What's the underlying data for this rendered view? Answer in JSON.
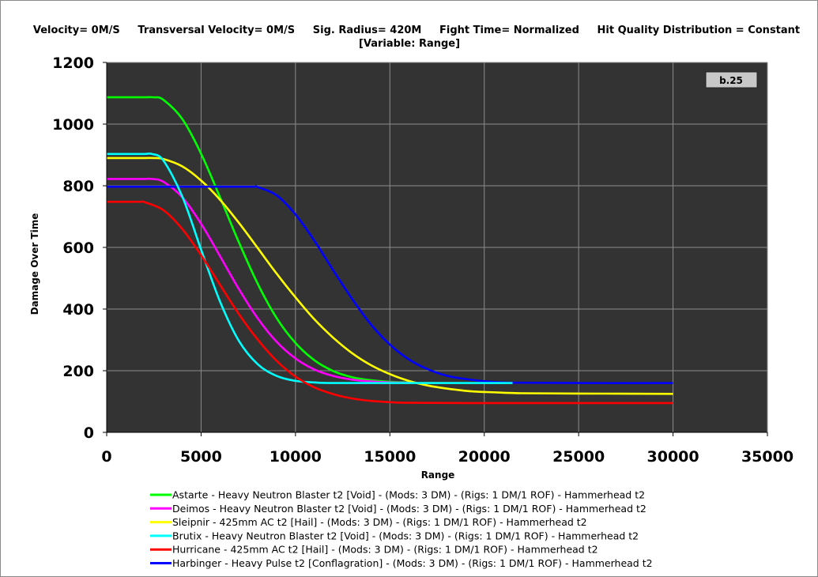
{
  "chart_data": {
    "type": "line",
    "title_line1": "Velocity= 0M/S     Transversal Velocity= 0M/S     Sig. Radius= 420M     Fight Time= Normalized     Hit Quality Distribution = Constant",
    "title_line2": "[Variable: Range]",
    "badge": "b.25",
    "xlabel": "Range",
    "ylabel": "Damage Over Time",
    "xlim": [
      0,
      35000
    ],
    "ylim": [
      0,
      1200
    ],
    "xticks": [
      0,
      5000,
      10000,
      15000,
      20000,
      25000,
      30000,
      35000
    ],
    "yticks": [
      0,
      200,
      400,
      600,
      800,
      1000,
      1200
    ],
    "grid": true,
    "legend_position": "bottom",
    "colors": {
      "background": "#333333",
      "grid": "#8c8c8c"
    },
    "series": [
      {
        "name": "Astarte - Heavy Neutron Blaster t2 [Void] - (Mods: 3 DM) - (Rigs: 1 DM/1 ROF) - Hammerhead t2",
        "color": "#00ff00",
        "x": [
          0,
          1000,
          2000,
          2500,
          3000,
          4000,
          5000,
          6000,
          7000,
          8000,
          9000,
          10000,
          11000,
          12000,
          13000,
          14000,
          15000,
          16000
        ],
        "y": [
          1087,
          1087,
          1087,
          1087,
          1079,
          1017,
          904,
          763,
          617,
          482,
          371,
          290,
          234,
          199,
          179,
          169,
          164,
          162
        ]
      },
      {
        "name": "Deimos - Heavy Neutron Blaster t2 [Void] - (Mods: 3 DM) - (Rigs: 1 DM/1 ROF) - Hammerhead t2",
        "color": "#ff00ff",
        "x": [
          0,
          1000,
          2000,
          2400,
          3000,
          4000,
          5000,
          6000,
          7000,
          8000,
          9000,
          10000,
          11000,
          12000,
          13000,
          14000,
          15000,
          16000
        ],
        "y": [
          822,
          822,
          822,
          822,
          813,
          763,
          677,
          572,
          465,
          370,
          294,
          240,
          204,
          183,
          171,
          165,
          162,
          161
        ]
      },
      {
        "name": "Sleipnir - 425mm AC t2 [Hail] - (Mods: 3 DM) - (Rigs: 1 DM/1 ROF) - Hammerhead t2",
        "color": "#ffff00",
        "x": [
          0,
          1000,
          2000,
          2500,
          3000,
          4000,
          5000,
          6000,
          7000,
          8000,
          9000,
          10000,
          11000,
          12000,
          13000,
          14000,
          15000,
          16000,
          17000,
          18000,
          19000,
          20000,
          22000,
          25000,
          30000
        ],
        "y": [
          890,
          890,
          890,
          890,
          887,
          863,
          817,
          755,
          680,
          598,
          515,
          438,
          367,
          307,
          257,
          218,
          189,
          167,
          152,
          142,
          135,
          131,
          127,
          126,
          125
        ]
      },
      {
        "name": "Brutix - Heavy Neutron Blaster t2 [Void] - (Mods: 3 DM) - (Rigs: 1 DM/1 ROF) - Hammerhead t2",
        "color": "#00ffff",
        "x": [
          0,
          1000,
          2000,
          2400,
          3000,
          4000,
          5000,
          6000,
          7000,
          8000,
          9000,
          10000,
          11000,
          12000,
          15000,
          20000,
          21500
        ],
        "y": [
          903,
          903,
          903,
          903,
          882,
          766,
          593,
          425,
          297,
          221,
          183,
          167,
          162,
          160,
          160,
          160,
          160
        ]
      },
      {
        "name": "Hurricane - 425mm AC t2 [Hail] - (Mods: 3 DM) - (Rigs: 1 DM/1 ROF) - Hammerhead t2",
        "color": "#ff0000",
        "x": [
          0,
          1000,
          1800,
          2000,
          3000,
          4000,
          5000,
          6000,
          7000,
          8000,
          9000,
          10000,
          11000,
          12000,
          13000,
          14000,
          15000,
          16000,
          20000,
          25000,
          30000
        ],
        "y": [
          748,
          748,
          748,
          747,
          721,
          660,
          575,
          479,
          384,
          301,
          232,
          181,
          146,
          124,
          110,
          102,
          98,
          96,
          95,
          95,
          95
        ]
      },
      {
        "name": "Harbinger - Heavy Pulse t2 [Conflagration] - (Mods: 3 DM) - (Rigs: 1 DM/1 ROF) - Hammerhead t2",
        "color": "#0000ff",
        "x": [
          0,
          2000,
          4000,
          6000,
          7000,
          7800,
          8000,
          9000,
          10000,
          11000,
          12000,
          13000,
          14000,
          15000,
          16000,
          17000,
          18000,
          19000,
          20000,
          21000,
          22000,
          25000,
          30000
        ],
        "y": [
          797,
          797,
          797,
          797,
          797,
          797,
          796,
          769,
          707,
          622,
          526,
          433,
          350,
          285,
          237,
          205,
          184,
          173,
          166,
          162,
          161,
          160,
          160
        ]
      }
    ],
    "draw_order": [
      0,
      1,
      2,
      5,
      3,
      4
    ]
  }
}
